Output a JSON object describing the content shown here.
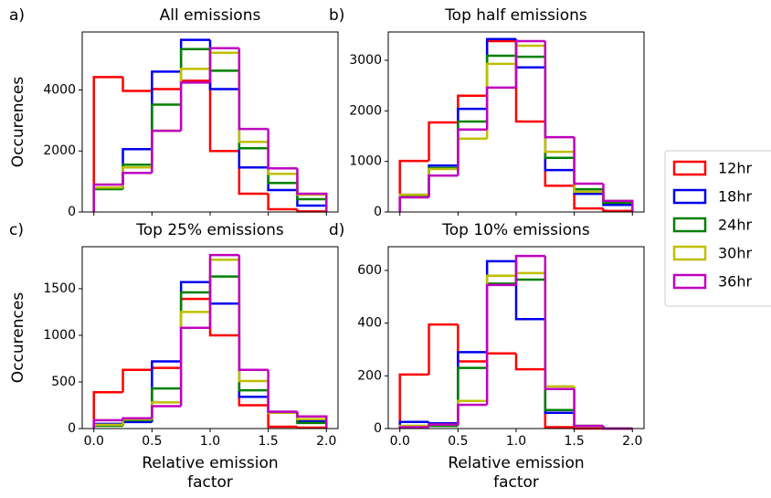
{
  "chart_data": [
    {
      "type": "histogram",
      "panel": "a)",
      "title": "All emissions",
      "ylabel": "Occurences",
      "bins": [
        0,
        0.25,
        0.5,
        0.75,
        1.0,
        1.25,
        1.5,
        1.75,
        2.0
      ],
      "xlim": [
        -0.1,
        2.1
      ],
      "ylim": [
        0,
        5900
      ],
      "yticks": [
        0,
        2000,
        4000
      ],
      "series": [
        {
          "values": [
            4420,
            3970,
            4030,
            4300,
            2000,
            600,
            90,
            20
          ]
        },
        {
          "values": [
            800,
            2060,
            4600,
            5640,
            4030,
            1460,
            720,
            210
          ]
        },
        {
          "values": [
            750,
            1550,
            3520,
            5340,
            4630,
            2090,
            950,
            420
          ]
        },
        {
          "values": [
            800,
            1460,
            2660,
            4690,
            5220,
            2300,
            1250,
            570
          ]
        },
        {
          "values": [
            900,
            1280,
            2660,
            4240,
            5370,
            2720,
            1430,
            600
          ]
        }
      ]
    },
    {
      "type": "histogram",
      "panel": "b)",
      "title": "Top half emissions",
      "bins": [
        0,
        0.25,
        0.5,
        0.75,
        1.0,
        1.25,
        1.5,
        1.75,
        2.0
      ],
      "xlim": [
        -0.1,
        2.1
      ],
      "ylim": [
        0,
        3560
      ],
      "yticks": [
        0,
        1000,
        2000,
        3000
      ],
      "series": [
        {
          "values": [
            1010,
            1770,
            2300,
            3380,
            1790,
            520,
            70,
            20
          ]
        },
        {
          "values": [
            340,
            920,
            2040,
            3420,
            2860,
            830,
            360,
            140
          ]
        },
        {
          "values": [
            330,
            870,
            1790,
            3090,
            3070,
            1070,
            450,
            180
          ]
        },
        {
          "values": [
            340,
            850,
            1450,
            2930,
            3290,
            1190,
            400,
            220
          ]
        },
        {
          "values": [
            290,
            720,
            1630,
            2460,
            3380,
            1480,
            560,
            220
          ]
        }
      ]
    },
    {
      "type": "histogram",
      "panel": "c)",
      "title": "Top 25% emissions",
      "ylabel": "Occurences",
      "xlabel": [
        "Relative emission",
        "factor"
      ],
      "bins": [
        0,
        0.25,
        0.5,
        0.75,
        1.0,
        1.25,
        1.5,
        1.75,
        2.0
      ],
      "xlim": [
        -0.1,
        2.1
      ],
      "ylim": [
        0,
        1950
      ],
      "yticks": [
        0,
        500,
        1000,
        1500
      ],
      "xticks": [
        {
          "value": 0,
          "label": "0.0"
        },
        {
          "value": 0.5,
          "label": "0.5"
        },
        {
          "value": 1,
          "label": "1.0"
        },
        {
          "value": 1.5,
          "label": "1.5"
        },
        {
          "value": 2,
          "label": "2.0"
        }
      ],
      "series": [
        {
          "values": [
            390,
            630,
            650,
            1390,
            1000,
            250,
            20,
            10
          ]
        },
        {
          "values": [
            50,
            70,
            720,
            1570,
            1340,
            340,
            180,
            80
          ]
        },
        {
          "values": [
            30,
            90,
            430,
            1460,
            1630,
            410,
            170,
            60
          ]
        },
        {
          "values": [
            40,
            100,
            280,
            1250,
            1810,
            510,
            170,
            100
          ]
        },
        {
          "values": [
            90,
            110,
            240,
            1080,
            1860,
            630,
            180,
            130
          ]
        }
      ]
    },
    {
      "type": "histogram",
      "panel": "d)",
      "title": "Top 10% emissions",
      "xlabel": [
        "Relative emission",
        "factor"
      ],
      "bins": [
        0,
        0.25,
        0.5,
        0.75,
        1.0,
        1.25,
        1.5,
        1.75,
        2.0
      ],
      "xlim": [
        -0.1,
        2.1
      ],
      "ylim": [
        0,
        690
      ],
      "yticks": [
        0,
        200,
        400,
        600
      ],
      "xticks": [
        {
          "value": 0,
          "label": "0.0"
        },
        {
          "value": 0.5,
          "label": "0.5"
        },
        {
          "value": 1,
          "label": "1.0"
        },
        {
          "value": 1.5,
          "label": "1.5"
        },
        {
          "value": 2,
          "label": "2.0"
        }
      ],
      "series": [
        {
          "values": [
            205,
            395,
            255,
            285,
            225,
            5,
            0,
            0
          ]
        },
        {
          "values": [
            25,
            20,
            290,
            635,
            415,
            60,
            10,
            0
          ]
        },
        {
          "values": [
            10,
            10,
            230,
            550,
            565,
            70,
            10,
            0
          ]
        },
        {
          "values": [
            10,
            15,
            105,
            580,
            590,
            160,
            10,
            0
          ]
        },
        {
          "values": [
            5,
            15,
            90,
            545,
            655,
            150,
            10,
            0
          ]
        }
      ]
    }
  ],
  "legend": [
    {
      "name": "12hr",
      "color": "#ff0000"
    },
    {
      "name": "18hr",
      "color": "#0000ee"
    },
    {
      "name": "24hr",
      "color": "#008000"
    },
    {
      "name": "30hr",
      "color": "#bfbf00"
    },
    {
      "name": "36hr",
      "color": "#bf00bf"
    }
  ],
  "legend_position": "right"
}
